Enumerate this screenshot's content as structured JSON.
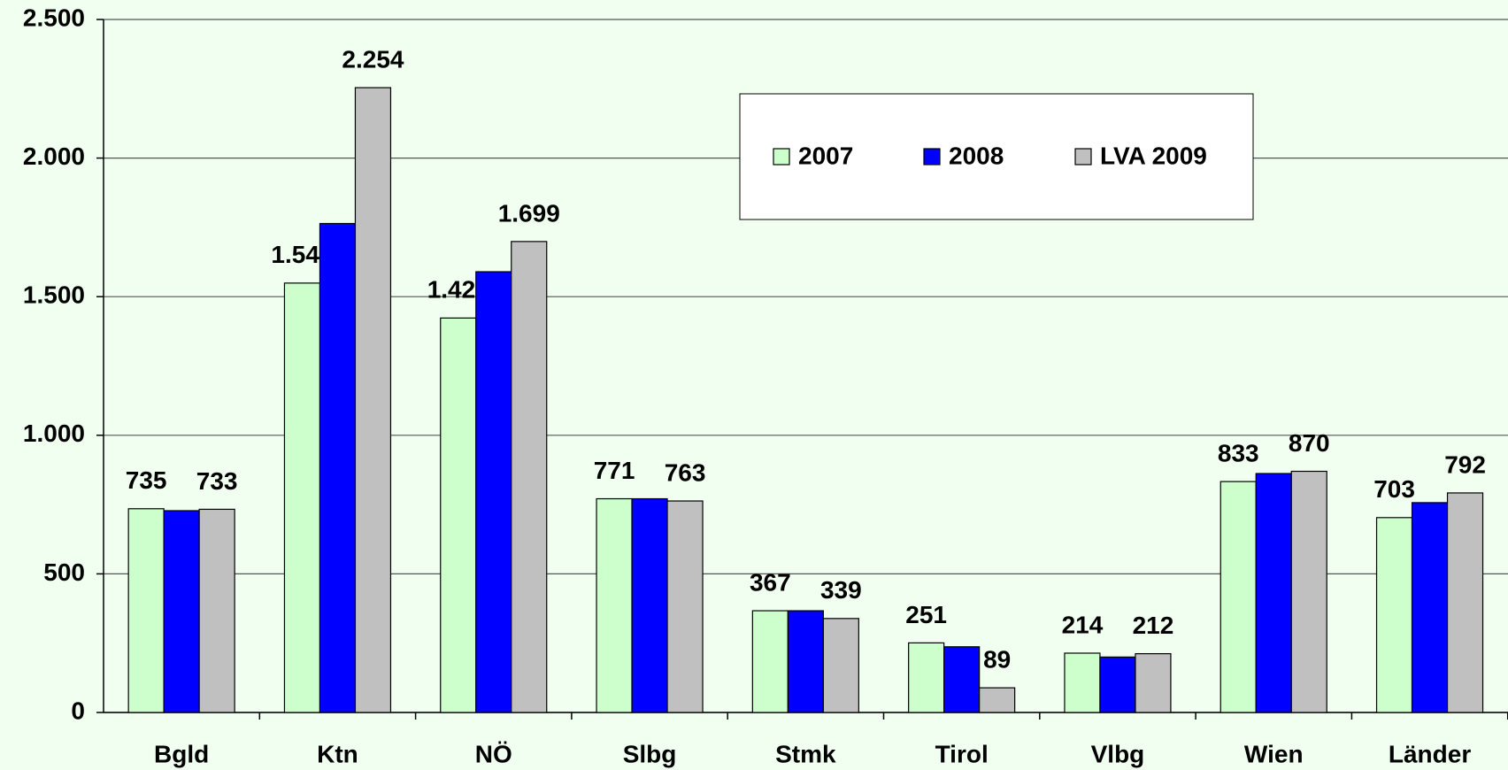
{
  "chart_data": {
    "type": "bar",
    "categories": [
      "Bgld",
      "Ktn",
      "NÖ",
      "Slbg",
      "Stmk",
      "Tirol",
      "Vlbg",
      "Wien",
      "Länder"
    ],
    "series": [
      {
        "name": "2007",
        "color": "#ccffcc",
        "values": [
          735,
          1549,
          1423,
          771,
          367,
          251,
          214,
          833,
          703
        ],
        "value_labels": [
          "735",
          "1.549",
          "1.423",
          "771",
          "367",
          "251",
          "214",
          "833",
          "703"
        ]
      },
      {
        "name": "2008",
        "color": "#0000ff",
        "values": [
          728,
          1764,
          1590,
          771,
          367,
          237,
          200,
          862,
          757
        ]
      },
      {
        "name": "LVA 2009",
        "color": "#c0c0c0",
        "values": [
          733,
          2254,
          1699,
          763,
          339,
          89,
          212,
          870,
          792
        ],
        "value_labels": [
          "733",
          "2.254",
          "1.699",
          "763",
          "339",
          "89",
          "212",
          "870",
          "792"
        ]
      }
    ],
    "ylim": [
      0,
      2500
    ],
    "yticks": [
      0,
      500,
      {
        "value": 1000,
        "label": "1.000"
      },
      {
        "value": 1500,
        "label": "1.500"
      },
      {
        "value": 2000,
        "label": "2.000"
      },
      {
        "value": 2500,
        "label": "2.500"
      }
    ],
    "grid": true,
    "legend": "top"
  }
}
